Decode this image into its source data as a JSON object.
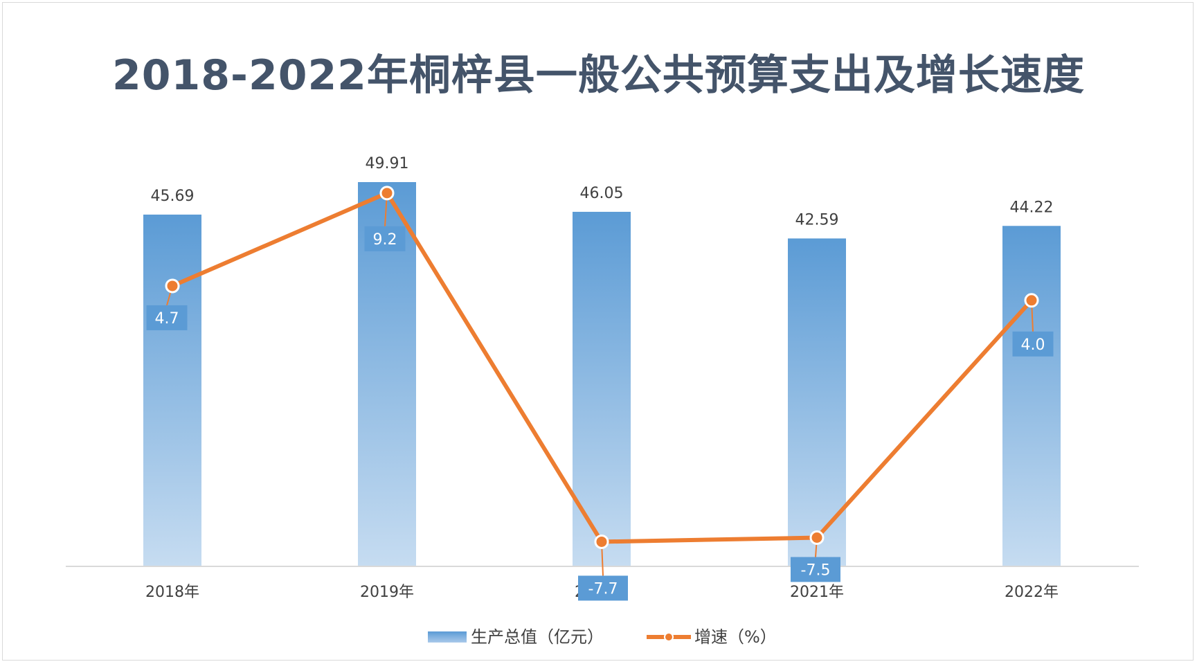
{
  "chart_data": {
    "type": "bar+line",
    "title": "2018-2022年桐梓县一般公共预算支出及增长速度",
    "categories": [
      "2018年",
      "2019年",
      "2020年",
      "2021年",
      "2022年"
    ],
    "series": [
      {
        "name": "生产总值（亿元）",
        "type": "bar",
        "values": [
          45.69,
          49.91,
          46.05,
          42.59,
          44.22
        ],
        "labels": [
          "45.69",
          "49.91",
          "46.05",
          "42.59",
          "44.22"
        ],
        "color": "#5b9bd5"
      },
      {
        "name": "增速（%）",
        "type": "line",
        "values": [
          4.7,
          9.2,
          -7.7,
          -7.5,
          4.0
        ],
        "labels": [
          "4.7",
          "9.2",
          "-7.7",
          "-7.5",
          "4.0"
        ],
        "color": "#ed7d31"
      }
    ],
    "bar_ylim": [
      0,
      50
    ],
    "line_ylim": [
      -10,
      12
    ],
    "grid": false,
    "legend": "bottom"
  }
}
